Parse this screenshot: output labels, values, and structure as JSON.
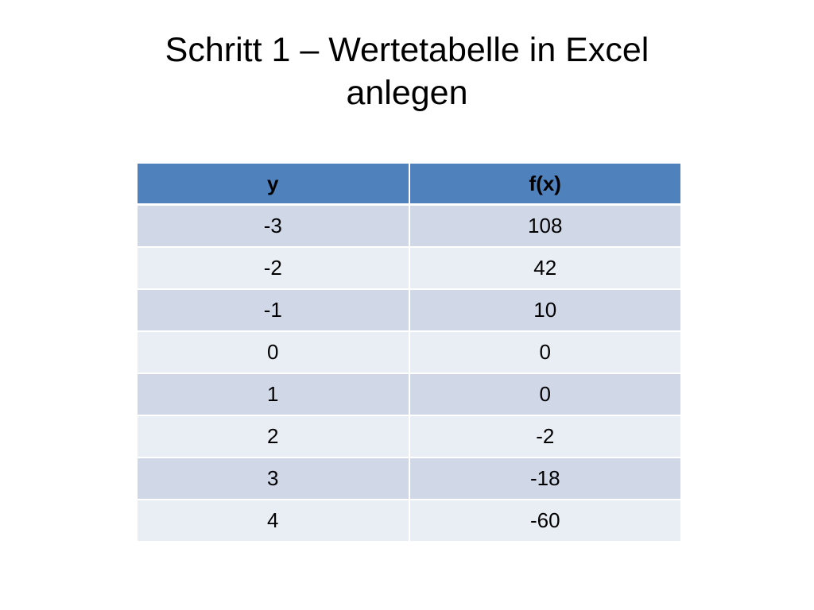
{
  "slide": {
    "title_line1": "Schritt 1 – Wertetabelle in Excel",
    "title_line2": "anlegen"
  },
  "table": {
    "headers": [
      "y",
      "f(x)"
    ],
    "rows": [
      [
        "-3",
        "108"
      ],
      [
        "-2",
        "42"
      ],
      [
        "-1",
        "10"
      ],
      [
        "0",
        "0"
      ],
      [
        "1",
        "0"
      ],
      [
        "2",
        "-2"
      ],
      [
        "3",
        "-18"
      ],
      [
        "4",
        "-60"
      ]
    ],
    "colors": {
      "header": "#4f81bd",
      "row_odd": "#d0d8e8",
      "row_even": "#e9edf4"
    }
  }
}
